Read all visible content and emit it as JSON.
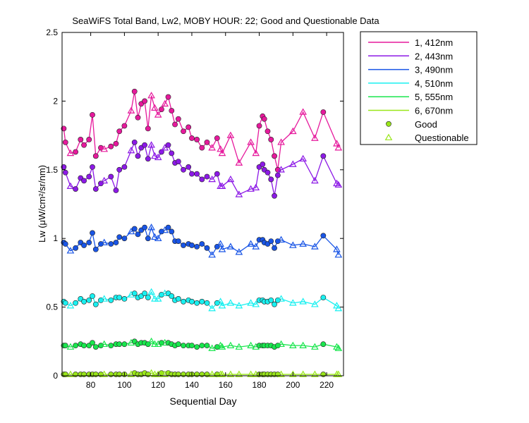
{
  "chart_data": {
    "type": "line",
    "title": "SeaWiFS Total Band,  Lw2, MOBY HOUR: 22;  Good and Questionable Data",
    "xlabel": "Sequential Day",
    "ylabel": "Lw (μW/cm²/sr/nm)",
    "xlim": [
      63,
      230
    ],
    "ylim": [
      0,
      2.5
    ],
    "xticks": [
      80,
      100,
      120,
      140,
      160,
      180,
      200,
      220
    ],
    "yticks": [
      0,
      0.5,
      1,
      1.5,
      2,
      2.5
    ],
    "ytick_labels": [
      "0",
      "0.5",
      "1",
      "1.5",
      "2",
      "2.5"
    ],
    "grid": false,
    "legend_position": "outside-top-right",
    "x": [
      64,
      65,
      68,
      71,
      74,
      76,
      79,
      81,
      83,
      86,
      88,
      92,
      95,
      97,
      100,
      104,
      106,
      108,
      110,
      112,
      114,
      116,
      118,
      120,
      122,
      124,
      126,
      128,
      130,
      132,
      135,
      138,
      140,
      143,
      146,
      149,
      152,
      155,
      157,
      158,
      163,
      168,
      175,
      178,
      180,
      182,
      183,
      185,
      187,
      189,
      191,
      193,
      200,
      206,
      213,
      218,
      226,
      227
    ],
    "series": [
      {
        "name": "1, 412nm",
        "color": "#e6199c",
        "values": [
          1.8,
          1.7,
          1.62,
          1.63,
          1.72,
          1.68,
          1.72,
          1.9,
          1.6,
          1.66,
          1.65,
          1.67,
          1.69,
          1.78,
          1.82,
          1.93,
          2.07,
          1.88,
          1.98,
          2.0,
          1.8,
          2.04,
          1.95,
          1.9,
          1.94,
          1.98,
          2.03,
          1.93,
          1.83,
          1.87,
          1.78,
          1.81,
          1.73,
          1.72,
          1.66,
          1.7,
          1.66,
          1.73,
          1.65,
          1.62,
          1.75,
          1.55,
          1.7,
          1.62,
          1.82,
          1.89,
          1.87,
          1.78,
          1.72,
          1.6,
          1.5,
          1.7,
          1.78,
          1.92,
          1.73,
          1.92,
          1.69,
          1.66
        ]
      },
      {
        "name": "2, 443nm",
        "color": "#8c19e6",
        "values": [
          1.52,
          1.48,
          1.38,
          1.36,
          1.44,
          1.42,
          1.45,
          1.52,
          1.36,
          1.4,
          1.42,
          1.45,
          1.35,
          1.5,
          1.52,
          1.64,
          1.7,
          1.6,
          1.66,
          1.68,
          1.58,
          1.68,
          1.6,
          1.59,
          1.63,
          1.66,
          1.68,
          1.62,
          1.55,
          1.56,
          1.5,
          1.52,
          1.47,
          1.47,
          1.43,
          1.45,
          1.43,
          1.47,
          1.38,
          1.38,
          1.43,
          1.32,
          1.36,
          1.37,
          1.52,
          1.54,
          1.5,
          1.48,
          1.43,
          1.31,
          1.46,
          1.5,
          1.54,
          1.58,
          1.42,
          1.6,
          1.4,
          1.39
        ]
      },
      {
        "name": "3, 490nm",
        "color": "#1955e6",
        "values": [
          0.97,
          0.96,
          0.91,
          0.93,
          0.97,
          0.95,
          0.97,
          1.04,
          0.92,
          0.96,
          0.97,
          0.96,
          0.97,
          1.01,
          1.0,
          1.05,
          1.07,
          1.03,
          1.06,
          1.08,
          1.0,
          1.08,
          1.01,
          1.0,
          1.05,
          1.06,
          1.08,
          1.05,
          0.98,
          0.98,
          0.95,
          0.96,
          0.95,
          0.94,
          0.96,
          0.93,
          0.88,
          0.94,
          0.96,
          0.92,
          0.94,
          0.9,
          0.96,
          0.94,
          0.99,
          0.99,
          0.97,
          0.96,
          0.98,
          0.93,
          0.98,
          0.99,
          0.95,
          0.96,
          0.94,
          1.02,
          0.92,
          0.88
        ]
      },
      {
        "name": "4, 510nm",
        "color": "#19f0f0",
        "values": [
          0.54,
          0.53,
          0.51,
          0.53,
          0.56,
          0.54,
          0.55,
          0.58,
          0.52,
          0.55,
          0.56,
          0.55,
          0.57,
          0.57,
          0.56,
          0.59,
          0.6,
          0.57,
          0.58,
          0.6,
          0.57,
          0.61,
          0.56,
          0.56,
          0.59,
          0.6,
          0.6,
          0.58,
          0.55,
          0.56,
          0.54,
          0.55,
          0.54,
          0.53,
          0.54,
          0.53,
          0.49,
          0.53,
          0.54,
          0.51,
          0.53,
          0.51,
          0.53,
          0.52,
          0.55,
          0.55,
          0.54,
          0.54,
          0.55,
          0.52,
          0.55,
          0.56,
          0.53,
          0.54,
          0.52,
          0.57,
          0.51,
          0.49
        ]
      },
      {
        "name": "5, 555nm",
        "color": "#19e64d",
        "values": [
          0.22,
          0.22,
          0.21,
          0.22,
          0.23,
          0.22,
          0.22,
          0.24,
          0.21,
          0.22,
          0.23,
          0.22,
          0.23,
          0.23,
          0.23,
          0.24,
          0.25,
          0.23,
          0.24,
          0.24,
          0.23,
          0.25,
          0.23,
          0.23,
          0.24,
          0.24,
          0.24,
          0.23,
          0.22,
          0.23,
          0.22,
          0.22,
          0.22,
          0.21,
          0.22,
          0.22,
          0.2,
          0.21,
          0.22,
          0.21,
          0.22,
          0.21,
          0.22,
          0.21,
          0.22,
          0.22,
          0.22,
          0.22,
          0.22,
          0.21,
          0.22,
          0.23,
          0.22,
          0.22,
          0.21,
          0.23,
          0.21,
          0.2
        ]
      },
      {
        "name": "6, 670nm",
        "color": "#99e619",
        "values": [
          0.01,
          0.01,
          0.01,
          0.01,
          0.01,
          0.01,
          0.01,
          0.01,
          0.01,
          0.01,
          0.01,
          0.01,
          0.01,
          0.01,
          0.01,
          0.01,
          0.02,
          0.01,
          0.01,
          0.02,
          0.01,
          0.02,
          0.01,
          0.01,
          0.02,
          0.01,
          0.02,
          0.01,
          0.01,
          0.01,
          0.01,
          0.01,
          0.01,
          0.01,
          0.01,
          0.01,
          0.01,
          0.01,
          0.01,
          0.01,
          0.01,
          0.01,
          0.01,
          0.01,
          0.01,
          0.01,
          0.01,
          0.01,
          0.01,
          0.01,
          0.01,
          0.01,
          0.01,
          0.01,
          0.01,
          0.01,
          0.01,
          0.01
        ]
      }
    ],
    "quality": [
      "good",
      "good",
      "questionable",
      "good",
      "good",
      "good",
      "good",
      "good",
      "good",
      "good",
      "questionable",
      "good",
      "good",
      "good",
      "good",
      "questionable",
      "good",
      "good",
      "good",
      "good",
      "good",
      "questionable",
      "questionable",
      "questionable",
      "good",
      "questionable",
      "good",
      "good",
      "good",
      "good",
      "good",
      "good",
      "good",
      "good",
      "good",
      "good",
      "questionable",
      "good",
      "questionable",
      "questionable",
      "questionable",
      "questionable",
      "questionable",
      "questionable",
      "good",
      "good",
      "good",
      "good",
      "good",
      "good",
      "good",
      "questionable",
      "questionable",
      "questionable",
      "questionable",
      "good",
      "questionable",
      "questionable"
    ],
    "legend_markers": [
      {
        "label": "Good",
        "marker": "circle",
        "color": "#99e619"
      },
      {
        "label": "Questionable",
        "marker": "triangle",
        "color": "#99e619"
      }
    ]
  }
}
